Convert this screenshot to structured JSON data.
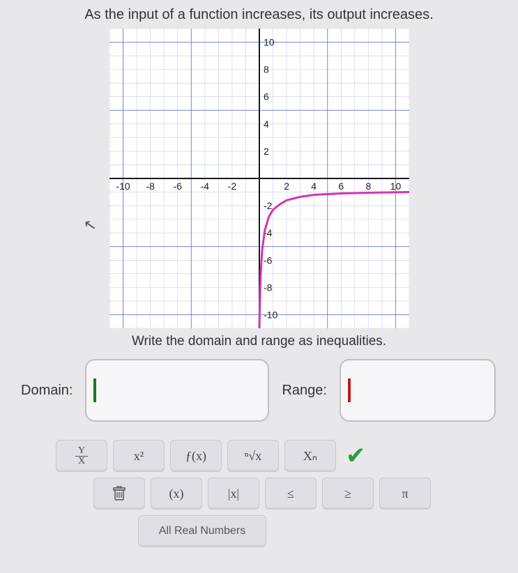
{
  "prompt_text": "As the input of a function increases, its output increases.",
  "subprompt_text": "Write the domain and range as inequalities.",
  "answers": {
    "domain_label": "Domain:",
    "range_label": "Range:",
    "domain_value": "",
    "range_value": ""
  },
  "toolbar": {
    "row1": {
      "frac_top": "Y",
      "frac_bot": "X",
      "power": "x²",
      "func": "ƒ(x)",
      "root": "ⁿ√x",
      "sub": "Xₙ"
    },
    "row2": {
      "trash": "trash-icon",
      "paren": "(x)",
      "abs": "|x|",
      "le": "≤",
      "ge": "≥",
      "pi": "π"
    },
    "row3": {
      "allreal": "All Real Numbers"
    }
  },
  "graph": {
    "type": "line",
    "background_color": "#ffffff",
    "grid_minor_color": "#8aa0d8",
    "grid_major_color": "#5a73c0",
    "axis_color": "#1a1a1a",
    "curve_color": "#d733b3",
    "curve_width": 3,
    "label_color": "#222222",
    "label_fontsize": 14,
    "xlim": [
      -11,
      11
    ],
    "ylim": [
      -11,
      11
    ],
    "minor_step": 1,
    "major_step": 5,
    "x_ticks": [
      -10,
      -8,
      -6,
      -4,
      -2,
      2,
      4,
      6,
      8,
      10
    ],
    "y_ticks": [
      -10,
      -8,
      -6,
      -4,
      -2,
      2,
      4,
      6,
      8,
      10
    ],
    "curve_points": [
      [
        0,
        -11
      ],
      [
        0.05,
        -8.5
      ],
      [
        0.1,
        -7
      ],
      [
        0.2,
        -5.3
      ],
      [
        0.4,
        -3.8
      ],
      [
        0.7,
        -2.8
      ],
      [
        1.0,
        -2.3
      ],
      [
        1.5,
        -1.9
      ],
      [
        2.0,
        -1.6
      ],
      [
        3.0,
        -1.35
      ],
      [
        4.0,
        -1.2
      ],
      [
        6.0,
        -1.1
      ],
      [
        8.0,
        -1.05
      ],
      [
        11,
        -1.0
      ]
    ]
  }
}
